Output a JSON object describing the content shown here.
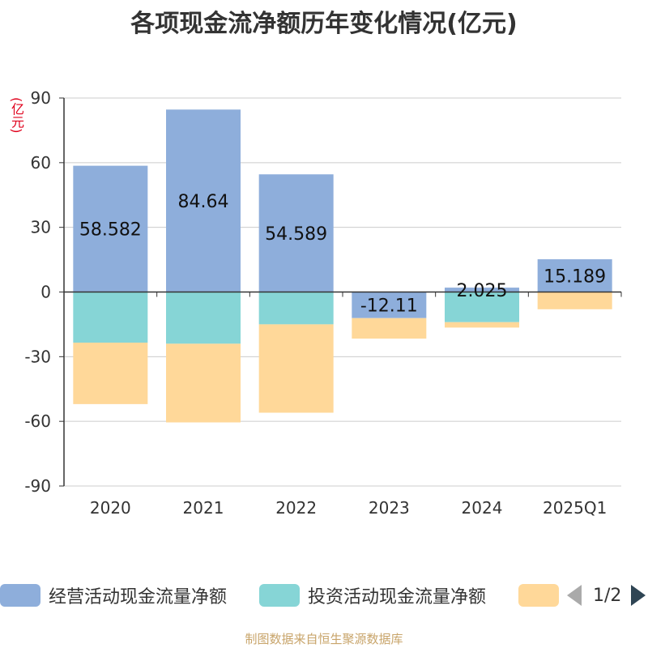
{
  "title": "各项现金流净额历年变化情况(亿元)",
  "unit_label": "(亿元)",
  "source": "制图数据来自恒生聚源数据库",
  "legend": {
    "items": [
      {
        "label": "经营活动现金流量净额",
        "color": "#8eaedb"
      },
      {
        "label": "投资活动现金流量净额",
        "color": "#86d5d6"
      },
      {
        "label": "",
        "color": "#ffd899"
      }
    ],
    "pager": "1/2"
  },
  "chart_data": {
    "type": "bar",
    "stacked": true,
    "categories": [
      "2020",
      "2021",
      "2022",
      "2023",
      "2024",
      "2025Q1"
    ],
    "series": [
      {
        "name": "经营活动现金流量净额",
        "color": "#8eaedb",
        "values": [
          58.582,
          84.64,
          54.589,
          -12.11,
          2.025,
          15.189
        ],
        "labels": [
          "58.582",
          "84.64",
          "54.589",
          "-12.11",
          "2.025",
          "15.189"
        ]
      },
      {
        "name": "投资活动现金流量净额",
        "color": "#86d5d6",
        "values": [
          -23.5,
          -24.0,
          -15.0,
          0,
          -14.0,
          0
        ]
      },
      {
        "name": "",
        "color": "#ffd899",
        "values": [
          -28.5,
          -36.5,
          -41.0,
          -9.5,
          -2.5,
          -8.0
        ]
      }
    ],
    "ylim": [
      -90,
      90
    ],
    "yticks": [
      90,
      60,
      30,
      0,
      -30,
      -60,
      -90
    ],
    "grid": true
  }
}
